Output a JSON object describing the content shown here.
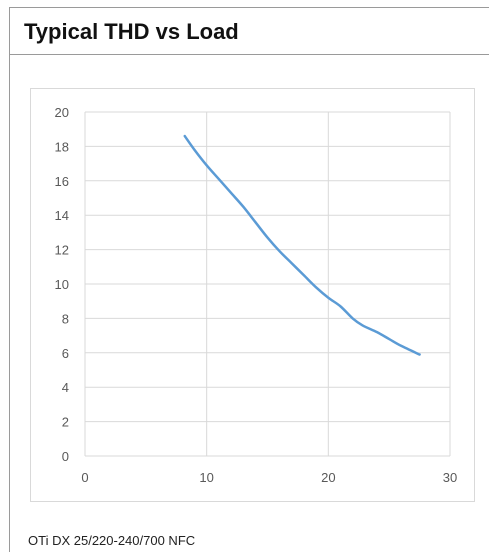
{
  "panel": {
    "title": "Typical THD vs Load",
    "caption": "OTi DX 25/220-240/700 NFC"
  },
  "colors": {
    "line": "#5b9bd5",
    "grid": "#d9d9d9",
    "border": "#9a9a9a",
    "tick_text": "#595959"
  },
  "chart_data": {
    "type": "line",
    "title": "",
    "xlabel": "",
    "ylabel": "",
    "xlim": [
      0,
      30
    ],
    "ylim": [
      0,
      20
    ],
    "xticks": [
      0,
      10,
      20,
      30
    ],
    "yticks": [
      0,
      2,
      4,
      6,
      8,
      10,
      12,
      14,
      16,
      18,
      20
    ],
    "grid": true,
    "legend": "none",
    "series": [
      {
        "x": [
          8.2,
          9,
          10,
          11,
          12,
          13,
          14,
          15,
          16,
          17,
          18,
          19,
          20,
          21,
          22,
          22.8,
          24,
          25,
          26,
          27.5
        ],
        "values": [
          18.6,
          17.8,
          16.9,
          16.1,
          15.3,
          14.5,
          13.6,
          12.7,
          11.9,
          11.2,
          10.5,
          9.8,
          9.2,
          8.7,
          8.0,
          7.6,
          7.2,
          6.8,
          6.4,
          5.9
        ]
      }
    ]
  }
}
